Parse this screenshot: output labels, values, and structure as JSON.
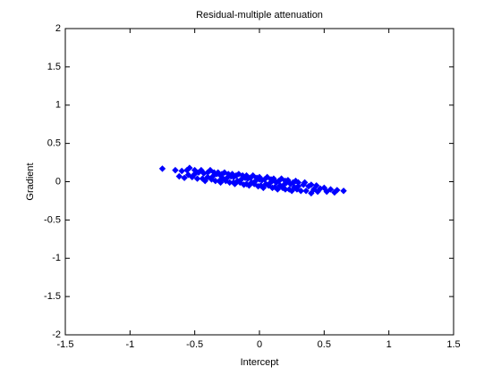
{
  "chart_data": {
    "type": "scatter",
    "title": "Residual-multiple attenuation",
    "xlabel": "Intercept",
    "ylabel": "Gradient",
    "xlim": [
      -1.5,
      1.5
    ],
    "ylim": [
      -2,
      2
    ],
    "xticks": [
      -1.5,
      -1,
      -0.5,
      0,
      0.5,
      1,
      1.5
    ],
    "yticks": [
      -2,
      -1.5,
      -1,
      -0.5,
      0,
      0.5,
      1,
      1.5,
      2
    ],
    "grid": false,
    "color": "#0000ff",
    "x": [
      -0.75,
      -0.65,
      -0.62,
      -0.6,
      -0.58,
      -0.56,
      -0.55,
      -0.54,
      -0.52,
      -0.5,
      -0.5,
      -0.48,
      -0.47,
      -0.45,
      -0.44,
      -0.43,
      -0.42,
      -0.4,
      -0.4,
      -0.38,
      -0.37,
      -0.36,
      -0.35,
      -0.34,
      -0.33,
      -0.32,
      -0.31,
      -0.3,
      -0.3,
      -0.29,
      -0.28,
      -0.27,
      -0.26,
      -0.25,
      -0.24,
      -0.23,
      -0.22,
      -0.21,
      -0.2,
      -0.2,
      -0.19,
      -0.18,
      -0.17,
      -0.16,
      -0.15,
      -0.14,
      -0.13,
      -0.12,
      -0.11,
      -0.1,
      -0.1,
      -0.09,
      -0.08,
      -0.07,
      -0.06,
      -0.05,
      -0.04,
      -0.03,
      -0.02,
      -0.01,
      0,
      0,
      0.01,
      0.02,
      0.03,
      0.04,
      0.05,
      0.06,
      0.07,
      0.08,
      0.09,
      0.1,
      0.1,
      0.11,
      0.12,
      0.13,
      0.14,
      0.15,
      0.16,
      0.17,
      0.18,
      0.19,
      0.2,
      0.2,
      0.21,
      0.22,
      0.23,
      0.24,
      0.25,
      0.26,
      0.27,
      0.28,
      0.29,
      0.3,
      0.3,
      0.32,
      0.34,
      0.35,
      0.36,
      0.38,
      0.4,
      0.4,
      0.42,
      0.44,
      0.45,
      0.47,
      0.5,
      0.52,
      0.55,
      0.58,
      0.6,
      0.65
    ],
    "y": [
      0.17,
      0.15,
      0.07,
      0.14,
      0.05,
      0.15,
      0.09,
      0.18,
      0.06,
      0.1,
      0.15,
      0.04,
      0.12,
      0.15,
      0.04,
      0.11,
      0.01,
      0.12,
      0.06,
      0.15,
      0.03,
      0.07,
      0.12,
      0.01,
      0.1,
      0.12,
      0.01,
      0.08,
      -0.01,
      0.1,
      0.04,
      0.12,
      0.01,
      0.05,
      0.1,
      -0.01,
      0.07,
      0.1,
      -0.01,
      0.06,
      -0.03,
      0.08,
      0.01,
      0.1,
      -0.01,
      0.03,
      0.08,
      -0.04,
      0.05,
      0.08,
      -0.03,
      0.04,
      -0.05,
      0.05,
      -0.01,
      0.08,
      -0.03,
      0.01,
      0.05,
      -0.06,
      0.03,
      0.06,
      -0.05,
      0.02,
      -0.08,
      0.03,
      -0.03,
      0.06,
      -0.05,
      -0.02,
      0.03,
      -0.08,
      0.01,
      0.04,
      -0.07,
      -0.01,
      -0.1,
      0.01,
      -0.05,
      0.04,
      -0.08,
      -0.04,
      0.01,
      -0.1,
      -0.01,
      0.02,
      -0.1,
      -0.03,
      -0.12,
      -0.01,
      -0.07,
      0.01,
      -0.1,
      -0.06,
      -0.01,
      -0.12,
      -0.04,
      -0.01,
      -0.12,
      -0.06,
      -0.15,
      -0.04,
      -0.1,
      -0.05,
      -0.13,
      -0.09,
      -0.08,
      -0.13,
      -0.1,
      -0.14,
      -0.11,
      -0.12
    ]
  }
}
